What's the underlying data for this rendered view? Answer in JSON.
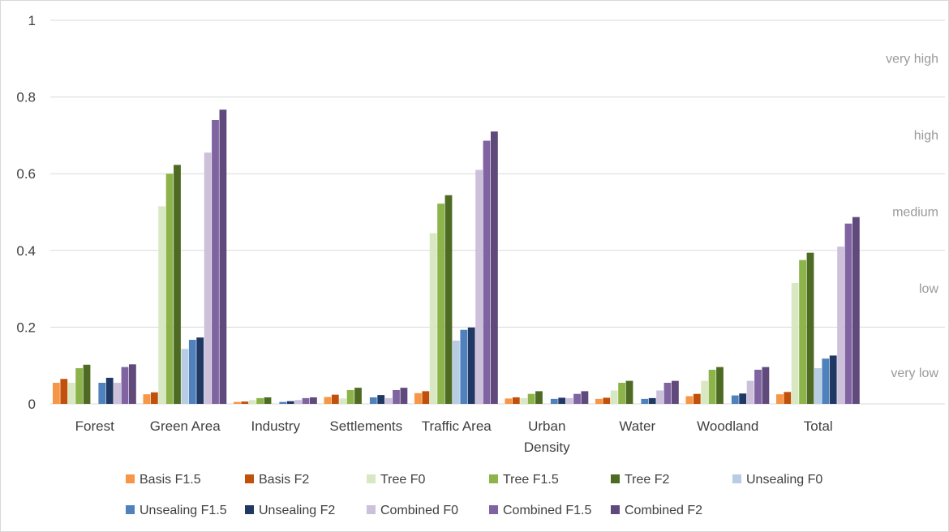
{
  "chart_data": {
    "type": "bar",
    "title": "",
    "xlabel": "",
    "ylabel": "",
    "ylim": [
      0,
      1
    ],
    "yticks": [
      0,
      0.2,
      0.4,
      0.6,
      0.8,
      1
    ],
    "ytick_labels": [
      "0",
      "0.2",
      "0.4",
      "0.6",
      "0.8",
      "1"
    ],
    "grid": true,
    "legend_position": "bottom",
    "categories": [
      [
        "Forest"
      ],
      [
        "Green Area"
      ],
      [
        "Industry"
      ],
      [
        "Settlements"
      ],
      [
        "Traffic Area"
      ],
      [
        "Urban",
        "Density"
      ],
      [
        "Water"
      ],
      [
        "Woodland"
      ],
      [
        "Total"
      ]
    ],
    "bands": [
      {
        "label": "very high",
        "value": 0.9
      },
      {
        "label": "high",
        "value": 0.7
      },
      {
        "label": "medium",
        "value": 0.5
      },
      {
        "label": "low",
        "value": 0.3
      },
      {
        "label": "very low",
        "value": 0.08
      }
    ],
    "series": [
      {
        "name": "Basis F1.5",
        "color": "#f79646",
        "values": [
          0.055,
          0.025,
          0.005,
          0.018,
          0.028,
          0.014,
          0.013,
          0.02,
          0.025
        ]
      },
      {
        "name": "Basis F2",
        "color": "#c0500a",
        "values": [
          0.065,
          0.03,
          0.006,
          0.024,
          0.033,
          0.017,
          0.016,
          0.026,
          0.031
        ]
      },
      {
        "name": "Tree F0",
        "color": "#d8e8c2",
        "values": [
          0.055,
          0.515,
          0.01,
          0.014,
          0.445,
          0.015,
          0.035,
          0.06,
          0.315
        ]
      },
      {
        "name": "Tree F1.5",
        "color": "#8cb44a",
        "values": [
          0.093,
          0.6,
          0.015,
          0.036,
          0.522,
          0.026,
          0.055,
          0.089,
          0.375
        ]
      },
      {
        "name": "Tree F2",
        "color": "#4e6b24",
        "values": [
          0.102,
          0.623,
          0.017,
          0.042,
          0.544,
          0.033,
          0.06,
          0.096,
          0.394
        ]
      },
      {
        "name": "Unsealing F0",
        "color": "#b8cce4",
        "values": [
          0.0,
          0.143,
          0.0,
          0.0,
          0.165,
          0.0,
          0.0,
          0.0,
          0.093
        ]
      },
      {
        "name": "Unsealing F1.5",
        "color": "#4f81bd",
        "values": [
          0.055,
          0.167,
          0.005,
          0.017,
          0.193,
          0.013,
          0.013,
          0.022,
          0.118
        ]
      },
      {
        "name": "Unsealing F2",
        "color": "#1f3864",
        "values": [
          0.068,
          0.173,
          0.007,
          0.023,
          0.199,
          0.016,
          0.015,
          0.027,
          0.126
        ]
      },
      {
        "name": "Combined F0",
        "color": "#ccc0da",
        "values": [
          0.055,
          0.655,
          0.01,
          0.015,
          0.61,
          0.015,
          0.035,
          0.06,
          0.41
        ]
      },
      {
        "name": "Combined F1.5",
        "color": "#8064a2",
        "values": [
          0.096,
          0.74,
          0.015,
          0.036,
          0.686,
          0.026,
          0.055,
          0.089,
          0.47
        ]
      },
      {
        "name": "Combined F2",
        "color": "#604a7b",
        "values": [
          0.103,
          0.767,
          0.017,
          0.042,
          0.71,
          0.033,
          0.06,
          0.096,
          0.487
        ]
      }
    ]
  }
}
